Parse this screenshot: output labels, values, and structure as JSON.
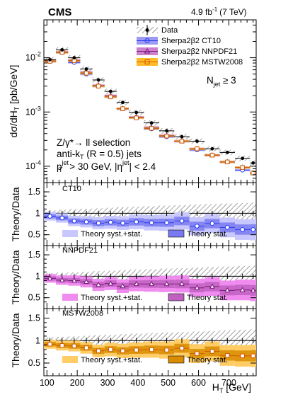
{
  "header": {
    "experiment": "CMS",
    "lumi": "4.9 fb",
    "lumi_sup": "-1",
    "energy": "(7 TeV)"
  },
  "main": {
    "ylabel_parts": [
      "dσ/dH",
      "T",
      " [pb/GeV]"
    ],
    "njet_parts": [
      "N",
      "jet",
      " ≥ 3"
    ],
    "annotations": {
      "line1": "Z/γ*→ ll selection",
      "line2": "anti-k",
      "line2_sub": "T",
      "line2_rest": " (R = 0.5) jets",
      "line3_p": "p",
      "line3_sub": "T",
      "line3_sup": "jet",
      "line3_mid": " > 30 GeV, |η",
      "line3_sup2": "jet",
      "line3_end": "| < 2.4"
    },
    "yticks": [
      "10",
      "10",
      "10"
    ],
    "ytick_exps": [
      "-2",
      "-3",
      "-4"
    ]
  },
  "legend": {
    "data": "Data",
    "ct10": "Sherpa2β2 CT10",
    "nnpdf": "Sherpa2β2 NNPDF21",
    "mstw": "Sherpa2β2 MSTW2008"
  },
  "ratio_panels": [
    {
      "label": "CT10",
      "syst": "Theory syst.+stat.",
      "stat": "Theory stat.",
      "ylabel": "Theory/Data",
      "fill_light": "#c8c8ff",
      "fill_dark": "#7a7af0",
      "color": "#2a3cf0",
      "marker": "circle"
    },
    {
      "label": "NNPDF21",
      "syst": "Theory syst.+stat.",
      "stat": "Theory stat.",
      "ylabel": "Theory/Data",
      "fill_light": "#f08cf0",
      "fill_dark": "#c060c0",
      "color": "#7a1a7a",
      "marker": "triangle"
    },
    {
      "label": "MSTW2008",
      "syst": "Theory syst.+stat.",
      "stat": "Theory stat.",
      "ylabel": "Theory/Data",
      "fill_light": "#ffcc66",
      "fill_dark": "#d98c00",
      "color": "#d05a00",
      "marker": "square"
    }
  ],
  "ratio_yticks": [
    "1.5",
    "1",
    "0.5"
  ],
  "xaxis": {
    "label_parts": [
      "H",
      "T",
      " [GeV]"
    ],
    "ticks": [
      "100",
      "200",
      "300",
      "400",
      "500",
      "600",
      "700"
    ]
  },
  "colors": {
    "data": "#000000",
    "ct10": "#2a3cf0",
    "nnpdf": "#7a1a7a",
    "mstw": "#d05a00"
  },
  "chart_data": {
    "type": "scatter",
    "title": "",
    "xlabel": "H_T [GeV]",
    "ylabel": "dσ/dH_T [pb/GeV]",
    "log_y": true,
    "ylim": [
      5e-05,
      0.05
    ],
    "xlim": [
      90,
      790
    ],
    "bins": [
      [
        90,
        130
      ],
      [
        130,
        170
      ],
      [
        170,
        210
      ],
      [
        210,
        250
      ],
      [
        250,
        290
      ],
      [
        290,
        330
      ],
      [
        330,
        370
      ],
      [
        370,
        420
      ],
      [
        420,
        470
      ],
      [
        470,
        520
      ],
      [
        520,
        570
      ],
      [
        570,
        620
      ],
      [
        620,
        670
      ],
      [
        670,
        720
      ],
      [
        720,
        770
      ],
      [
        770,
        790
      ]
    ],
    "x": [
      110,
      150,
      190,
      230,
      270,
      310,
      350,
      395,
      445,
      495,
      545,
      595,
      645,
      695,
      745,
      780
    ],
    "series": [
      {
        "name": "Data",
        "values": [
          0.0092,
          0.014,
          0.01,
          0.0062,
          0.0039,
          0.0024,
          0.0015,
          0.00098,
          0.00063,
          0.00045,
          0.00035,
          0.00029,
          0.00021,
          0.00018,
          0.00014,
          0.000115
        ]
      },
      {
        "name": "Sherpa2β2 CT10",
        "values": [
          0.0086,
          0.0125,
          0.0082,
          0.005,
          0.003,
          0.0019,
          0.00115,
          0.00079,
          0.00049,
          0.00035,
          0.00029,
          0.0002,
          0.00016,
          0.00012,
          8.5e-05,
          7.5e-05
        ]
      },
      {
        "name": "Sherpa2β2 NNPDF21",
        "values": [
          0.0088,
          0.0128,
          0.009,
          0.0054,
          0.0031,
          0.002,
          0.00115,
          0.0008,
          0.00052,
          0.00037,
          0.00029,
          0.00021,
          0.00016,
          0.00012,
          9.5e-05,
          7.5e-05
        ]
      },
      {
        "name": "Sherpa2β2 MSTW2008",
        "values": [
          0.0086,
          0.0125,
          0.0088,
          0.0052,
          0.003,
          0.0019,
          0.00115,
          0.00078,
          0.0005,
          0.00036,
          0.00029,
          0.00021,
          0.00016,
          0.00012,
          9.5e-05,
          7.5e-05
        ]
      }
    ],
    "ratio_x": [
      110,
      150,
      190,
      230,
      270,
      310,
      350,
      395,
      445,
      495,
      545,
      595,
      645,
      695,
      745,
      780
    ],
    "ratios": {
      "CT10": [
        0.93,
        0.89,
        0.82,
        0.8,
        0.77,
        0.79,
        0.77,
        0.8,
        0.78,
        0.78,
        0.82,
        0.7,
        0.76,
        0.67,
        0.62,
        0.62
      ],
      "NNPDF21": [
        0.95,
        0.91,
        0.9,
        0.87,
        0.8,
        0.83,
        0.77,
        0.82,
        0.82,
        0.82,
        0.82,
        0.73,
        0.76,
        0.67,
        0.68,
        0.67
      ],
      "MSTW2008": [
        0.92,
        0.89,
        0.88,
        0.84,
        0.77,
        0.8,
        0.77,
        0.79,
        0.8,
        0.79,
        0.83,
        0.71,
        0.76,
        0.67,
        0.66,
        0.66
      ]
    },
    "ratio_ylim": [
      0.28,
      1.65
    ]
  }
}
